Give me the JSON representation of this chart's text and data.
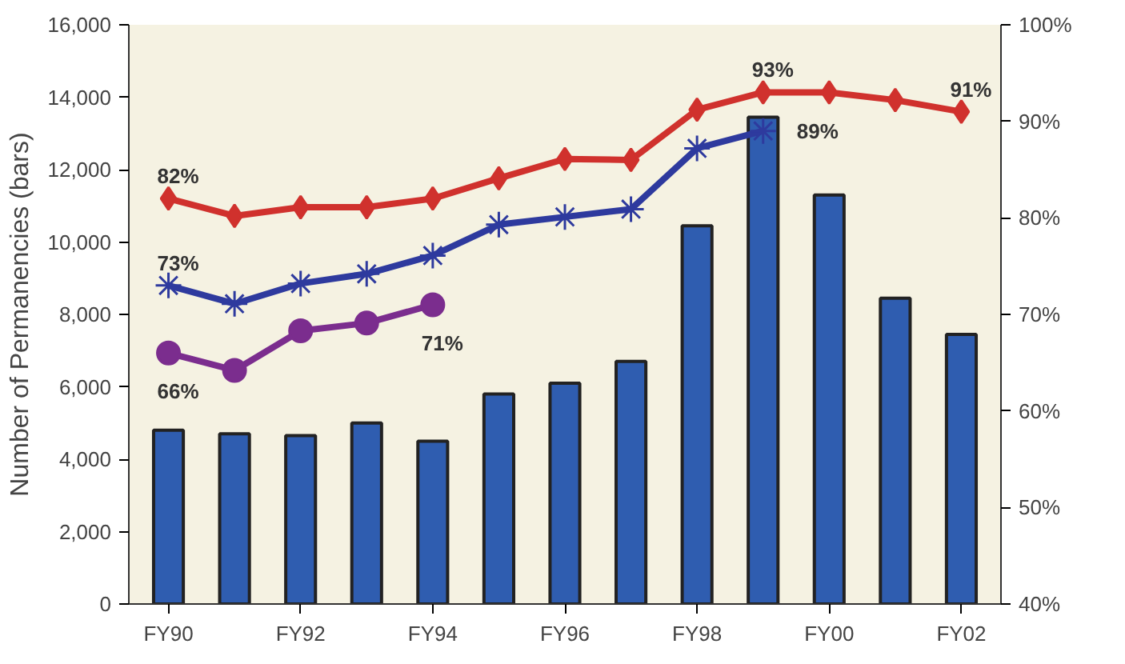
{
  "chart_data": {
    "type": "bar",
    "ylabel": "Number of Permanencies (bars)",
    "categories": [
      "FY90",
      null,
      "FY92",
      null,
      "FY94",
      null,
      "FY96",
      null,
      "FY98",
      null,
      "FY00",
      null,
      "FY02"
    ],
    "ylim": [
      0,
      16000
    ],
    "yticks": [
      {
        "value": 0,
        "label": "0"
      },
      {
        "value": 2000,
        "label": "2,000"
      },
      {
        "value": 4000,
        "label": "4,000"
      },
      {
        "value": 6000,
        "label": "6,000"
      },
      {
        "value": 8000,
        "label": "8,000"
      },
      {
        "value": 10000,
        "label": "10,000"
      },
      {
        "value": 12000,
        "label": "12,000"
      },
      {
        "value": 14000,
        "label": "14,000"
      },
      {
        "value": 16000,
        "label": "16,000"
      }
    ],
    "y2lim": [
      40,
      100
    ],
    "y2ticks": [
      {
        "value": 40,
        "label": "40%"
      },
      {
        "value": 50,
        "label": "50%"
      },
      {
        "value": 60,
        "label": "60%"
      },
      {
        "value": 70,
        "label": "70%"
      },
      {
        "value": 80,
        "label": "80%"
      },
      {
        "value": 90,
        "label": "90%"
      },
      {
        "value": 100,
        "label": "100%"
      }
    ],
    "grid": false,
    "series": [
      {
        "color": "#2f5db0",
        "values": [
          4800,
          4700,
          4650,
          5000,
          4500,
          5800,
          6100,
          6700,
          10450,
          13450,
          11300,
          8450,
          7450
        ]
      },
      {
        "type": "line",
        "axis": "y2",
        "color": "#d0312d",
        "marker": "diamond",
        "values": [
          82,
          80.2,
          81.1,
          81.1,
          82,
          84.1,
          86.1,
          86,
          91.2,
          93,
          93,
          92.2,
          91
        ],
        "value_labels": [
          "82%",
          null,
          null,
          null,
          null,
          null,
          null,
          null,
          null,
          "93%",
          null,
          null,
          "91%"
        ]
      },
      {
        "type": "line",
        "axis": "y2",
        "color": "#2e3a9e",
        "marker": "cross",
        "values": [
          73,
          71.1,
          73.2,
          74.2,
          76.1,
          79.3,
          80.1,
          80.9,
          87.2,
          89,
          null,
          null,
          null
        ],
        "value_labels": [
          "73%",
          null,
          null,
          null,
          null,
          null,
          null,
          null,
          null,
          "89%",
          null,
          null,
          null
        ]
      },
      {
        "type": "line",
        "axis": "y2",
        "color": "#7b2d8e",
        "marker": "circle",
        "values": [
          66,
          64.2,
          68.3,
          69.1,
          71,
          null,
          null,
          null,
          null,
          null,
          null,
          null,
          null
        ],
        "value_labels": [
          "66%",
          null,
          null,
          null,
          "71%",
          null,
          null,
          null,
          null,
          null,
          null,
          null,
          null
        ]
      }
    ]
  }
}
